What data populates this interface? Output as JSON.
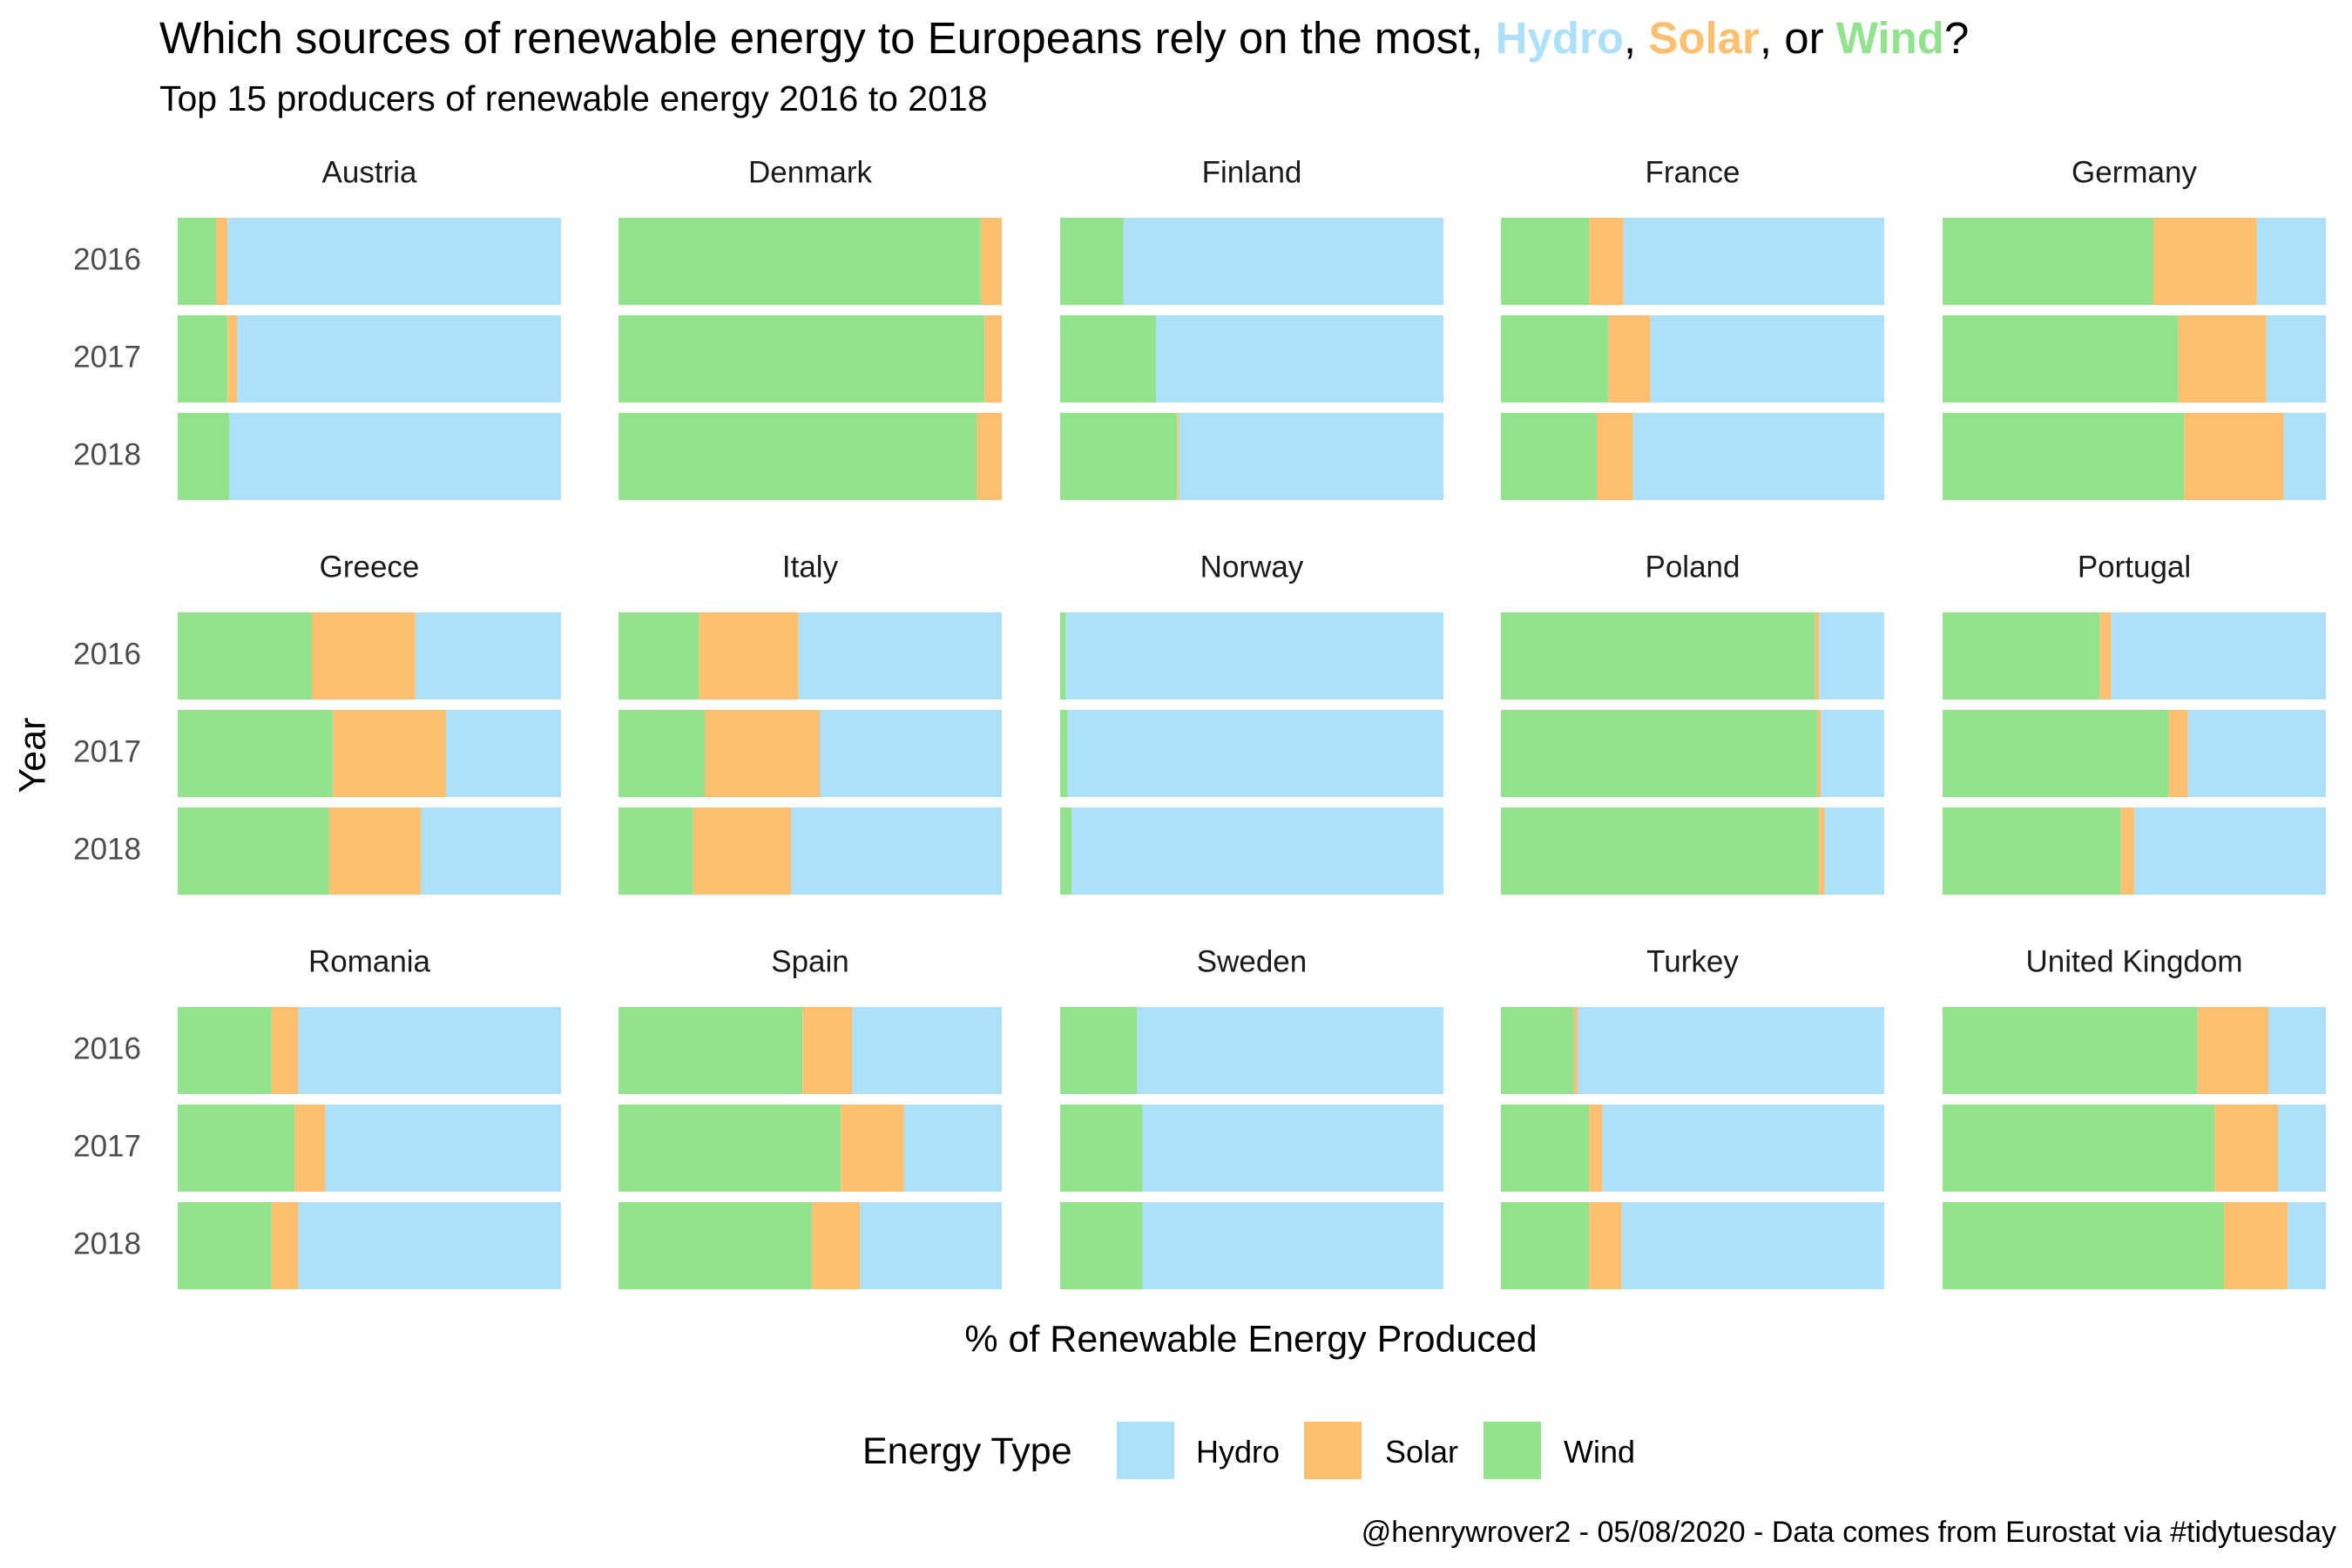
{
  "header": {
    "title_prefix": "Which sources of renewable energy to Europeans rely on the most, ",
    "title_hydro": "Hydro",
    "title_sep1": ", ",
    "title_solar": "Solar",
    "title_sep2": ", or ",
    "title_wind": "Wind",
    "title_suffix": "?",
    "subtitle": "Top 15 producers of renewable energy 2016 to 2018"
  },
  "caption": "@henrywrover2 - 05/08/2020 - Data comes from Eurostat via #tidytuesday",
  "legend": {
    "title": "Energy Type",
    "items": [
      {
        "label": "Hydro",
        "color": "#ade1fa"
      },
      {
        "label": "Solar",
        "color": "#fdc070"
      },
      {
        "label": "Wind",
        "color": "#93e28e"
      }
    ]
  },
  "chart_data": {
    "type": "bar",
    "orientation": "horizontal",
    "stacked": true,
    "normalized": true,
    "xlabel": "% of Renewable Energy Produced",
    "ylabel": "Year",
    "years": [
      "2016",
      "2017",
      "2018"
    ],
    "stack_order": [
      "Wind",
      "Solar",
      "Hydro"
    ],
    "colors": {
      "Hydro": "#ade1fa",
      "Solar": "#fdc070",
      "Wind": "#93e28e"
    },
    "legend_position": "bottom",
    "grid": false,
    "facets": [
      {
        "country": "Austria",
        "values": [
          {
            "year": "2016",
            "Wind": 10,
            "Solar": 3,
            "Hydro": 87
          },
          {
            "year": "2017",
            "Wind": 13,
            "Solar": 2.5,
            "Hydro": 84.5
          },
          {
            "year": "2018",
            "Wind": 13.5,
            "Solar": 0,
            "Hydro": 86.5
          }
        ]
      },
      {
        "country": "Denmark",
        "values": [
          {
            "year": "2016",
            "Wind": 94.5,
            "Solar": 5.5,
            "Hydro": 0
          },
          {
            "year": "2017",
            "Wind": 95.5,
            "Solar": 4.5,
            "Hydro": 0
          },
          {
            "year": "2018",
            "Wind": 93.5,
            "Solar": 6.5,
            "Hydro": 0
          }
        ]
      },
      {
        "country": "Finland",
        "values": [
          {
            "year": "2016",
            "Wind": 16.5,
            "Solar": 0,
            "Hydro": 83.5
          },
          {
            "year": "2017",
            "Wind": 25,
            "Solar": 0,
            "Hydro": 75
          },
          {
            "year": "2018",
            "Wind": 30.5,
            "Solar": 0.5,
            "Hydro": 69
          }
        ]
      },
      {
        "country": "France",
        "values": [
          {
            "year": "2016",
            "Wind": 23,
            "Solar": 9,
            "Hydro": 68
          },
          {
            "year": "2017",
            "Wind": 28,
            "Solar": 11,
            "Hydro": 61
          },
          {
            "year": "2018",
            "Wind": 25,
            "Solar": 9.5,
            "Hydro": 65.5
          }
        ]
      },
      {
        "country": "Germany",
        "values": [
          {
            "year": "2016",
            "Wind": 55,
            "Solar": 27,
            "Hydro": 18
          },
          {
            "year": "2017",
            "Wind": 61.5,
            "Solar": 23,
            "Hydro": 15.5
          },
          {
            "year": "2018",
            "Wind": 63,
            "Solar": 26,
            "Hydro": 11
          }
        ]
      },
      {
        "country": "Greece",
        "values": [
          {
            "year": "2016",
            "Wind": 35,
            "Solar": 27,
            "Hydro": 38
          },
          {
            "year": "2017",
            "Wind": 40.5,
            "Solar": 29.5,
            "Hydro": 30
          },
          {
            "year": "2018",
            "Wind": 39.5,
            "Solar": 24,
            "Hydro": 36.5
          }
        ]
      },
      {
        "country": "Italy",
        "values": [
          {
            "year": "2016",
            "Wind": 21,
            "Solar": 26,
            "Hydro": 53
          },
          {
            "year": "2017",
            "Wind": 22.5,
            "Solar": 30,
            "Hydro": 47.5
          },
          {
            "year": "2018",
            "Wind": 19.5,
            "Solar": 25.5,
            "Hydro": 55
          }
        ]
      },
      {
        "country": "Norway",
        "values": [
          {
            "year": "2016",
            "Wind": 1.5,
            "Solar": 0,
            "Hydro": 98.5
          },
          {
            "year": "2017",
            "Wind": 2,
            "Solar": 0,
            "Hydro": 98
          },
          {
            "year": "2018",
            "Wind": 3,
            "Solar": 0,
            "Hydro": 97
          }
        ]
      },
      {
        "country": "Poland",
        "values": [
          {
            "year": "2016",
            "Wind": 82,
            "Solar": 1,
            "Hydro": 17
          },
          {
            "year": "2017",
            "Wind": 82.5,
            "Solar": 1,
            "Hydro": 16.5
          },
          {
            "year": "2018",
            "Wind": 83,
            "Solar": 1.5,
            "Hydro": 15.5
          }
        ]
      },
      {
        "country": "Portugal",
        "values": [
          {
            "year": "2016",
            "Wind": 41,
            "Solar": 3,
            "Hydro": 56
          },
          {
            "year": "2017",
            "Wind": 59,
            "Solar": 5,
            "Hydro": 36
          },
          {
            "year": "2018",
            "Wind": 46.5,
            "Solar": 3.5,
            "Hydro": 50
          }
        ]
      },
      {
        "country": "Romania",
        "values": [
          {
            "year": "2016",
            "Wind": 24.5,
            "Solar": 7,
            "Hydro": 68.5
          },
          {
            "year": "2017",
            "Wind": 30.5,
            "Solar": 8,
            "Hydro": 61.5
          },
          {
            "year": "2018",
            "Wind": 24.5,
            "Solar": 7,
            "Hydro": 68.5
          }
        ]
      },
      {
        "country": "Spain",
        "values": [
          {
            "year": "2016",
            "Wind": 48,
            "Solar": 13,
            "Hydro": 39
          },
          {
            "year": "2017",
            "Wind": 58,
            "Solar": 16.5,
            "Hydro": 25.5
          },
          {
            "year": "2018",
            "Wind": 50.5,
            "Solar": 12.5,
            "Hydro": 37
          }
        ]
      },
      {
        "country": "Sweden",
        "values": [
          {
            "year": "2016",
            "Wind": 20,
            "Solar": 0,
            "Hydro": 80
          },
          {
            "year": "2017",
            "Wind": 21.5,
            "Solar": 0,
            "Hydro": 78.5
          },
          {
            "year": "2018",
            "Wind": 21.5,
            "Solar": 0,
            "Hydro": 78.5
          }
        ]
      },
      {
        "country": "Turkey",
        "values": [
          {
            "year": "2016",
            "Wind": 19,
            "Solar": 1,
            "Hydro": 80
          },
          {
            "year": "2017",
            "Wind": 23,
            "Solar": 3.5,
            "Hydro": 73.5
          },
          {
            "year": "2018",
            "Wind": 23,
            "Solar": 8.5,
            "Hydro": 68.5
          }
        ]
      },
      {
        "country": "United Kingdom",
        "values": [
          {
            "year": "2016",
            "Wind": 66.5,
            "Solar": 18.5,
            "Hydro": 15
          },
          {
            "year": "2017",
            "Wind": 71,
            "Solar": 16.5,
            "Hydro": 12.5
          },
          {
            "year": "2018",
            "Wind": 73.5,
            "Solar": 16.5,
            "Hydro": 10
          }
        ]
      }
    ]
  }
}
